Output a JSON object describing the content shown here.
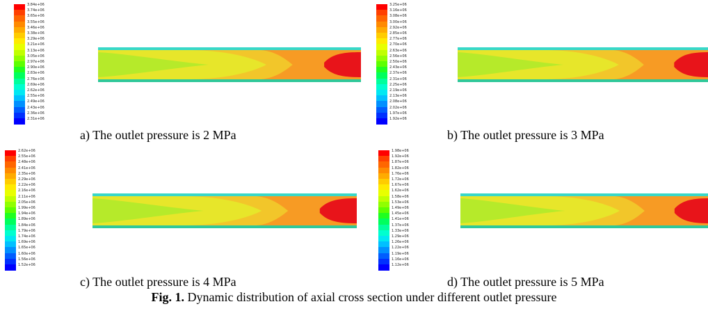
{
  "colormap": [
    "#0000ff",
    "#0030ff",
    "#005dff",
    "#0090ff",
    "#00c0ff",
    "#00e8f2",
    "#00ffcf",
    "#00ff9c",
    "#00ff5d",
    "#20ff20",
    "#5dff00",
    "#90ff00",
    "#c0ff00",
    "#e8ff00",
    "#ffea00",
    "#ffcc00",
    "#ffab00",
    "#ff8a00",
    "#ff6600",
    "#ff4000",
    "#ff0000"
  ],
  "field_colors": {
    "rim_top": "#38d8c8",
    "rim_bottom": "#2fc89a",
    "lime": "#b6ea2a",
    "yellow": "#e7e62a",
    "gold": "#f2c62a",
    "orange": "#f79b24",
    "red": "#e8141a"
  },
  "panels": [
    {
      "id": "a",
      "caption": "a) The outlet pressure is 2 MPa",
      "ticks": [
        "3.84e+06",
        "3.74e+06",
        "3.65e+06",
        "3.55e+06",
        "3.46e+06",
        "3.38e+06",
        "3.29e+06",
        "3.21e+06",
        "3.13e+06",
        "3.05e+06",
        "2.97e+06",
        "2.90e+06",
        "2.83e+06",
        "2.76e+06",
        "2.69e+06",
        "2.62e+06",
        "2.55e+06",
        "2.49e+06",
        "2.43e+06",
        "2.36e+06",
        "2.31e+06"
      ]
    },
    {
      "id": "b",
      "caption": "b) The outlet pressure is 3 MPa",
      "ticks": [
        "3.25e+06",
        "3.16e+06",
        "3.08e+06",
        "3.00e+06",
        "2.92e+06",
        "2.85e+06",
        "2.77e+06",
        "2.70e+06",
        "2.63e+06",
        "2.56e+06",
        "2.50e+06",
        "2.43e+06",
        "2.37e+06",
        "2.31e+06",
        "2.25e+06",
        "2.19e+06",
        "2.13e+06",
        "2.08e+06",
        "2.02e+06",
        "1.97e+06",
        "1.92e+06"
      ]
    },
    {
      "id": "c",
      "caption": "c) The outlet pressure is 4 MPa",
      "ticks": [
        "2.62e+06",
        "2.55e+06",
        "2.48e+06",
        "2.41e+06",
        "2.35e+06",
        "2.29e+06",
        "2.22e+06",
        "2.16e+06",
        "2.11e+06",
        "2.05e+06",
        "1.99e+06",
        "1.94e+06",
        "1.89e+06",
        "1.84e+06",
        "1.79e+06",
        "1.74e+06",
        "1.69e+06",
        "1.65e+06",
        "1.60e+06",
        "1.56e+06",
        "1.52e+06"
      ]
    },
    {
      "id": "d",
      "caption": "d) The outlet pressure is 5 MPa",
      "ticks": [
        "1.98e+06",
        "1.92e+06",
        "1.87e+06",
        "1.82e+06",
        "1.76e+06",
        "1.72e+06",
        "1.67e+06",
        "1.62e+06",
        "1.58e+06",
        "1.53e+06",
        "1.49e+06",
        "1.45e+06",
        "1.41e+06",
        "1.37e+06",
        "1.33e+06",
        "1.29e+06",
        "1.26e+06",
        "1.22e+06",
        "1.19e+06",
        "1.16e+06",
        "1.12e+06"
      ]
    }
  ],
  "figure_caption": {
    "label": "Fig. 1.",
    "text": " Dynamic distribution of axial cross section under different outlet pressure"
  }
}
